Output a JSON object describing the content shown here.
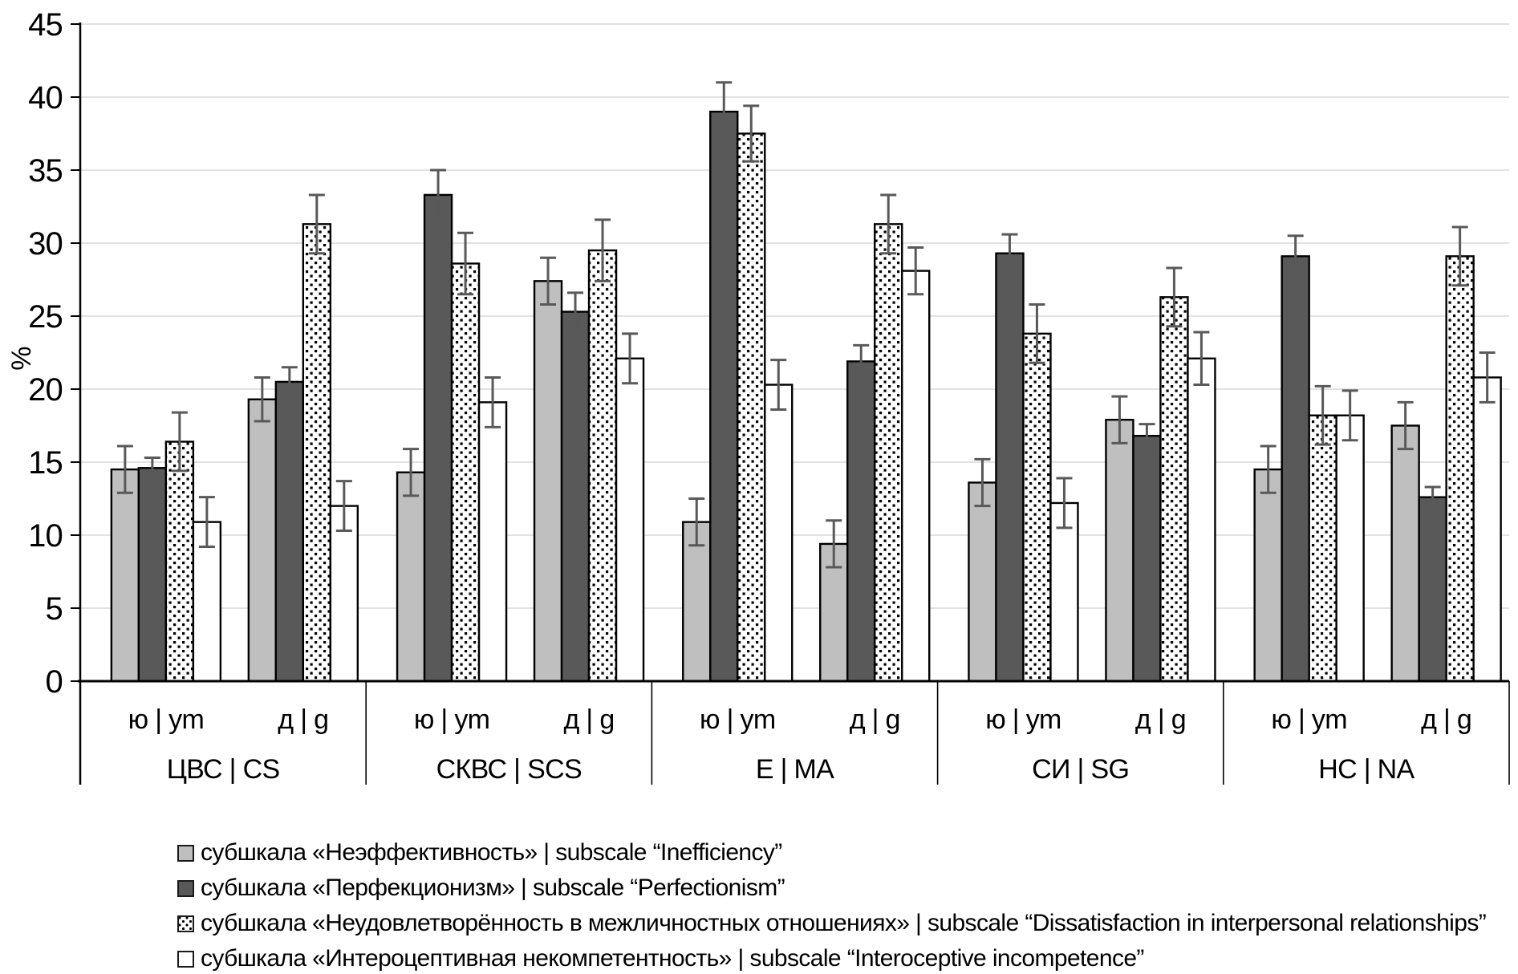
{
  "figure": {
    "background": "#ffffff",
    "gridline_color": "#d9d9d9",
    "bar_outline_color": "#000000",
    "error_bar_color": "#595959",
    "series_fills": [
      "#bfbfbf",
      "#595959",
      "dotted-pattern",
      "#ffffff"
    ]
  },
  "chart_data": {
    "type": "bar",
    "title": "",
    "xlabel": "",
    "ylabel": "%",
    "ylim": [
      0,
      45
    ],
    "yticks": [
      0,
      5,
      10,
      15,
      20,
      25,
      30,
      35,
      40,
      45
    ],
    "grid": true,
    "legend_position": "bottom-left",
    "error_bars": true,
    "series": [
      {
        "name": "субшкала «Неэффективность» | subscale “Inefficiency”",
        "fill": "light-gray",
        "color": "#bfbfbf",
        "pattern": "solid"
      },
      {
        "name": "субшкала «Перфекционизм» | subscale “Perfectionism”",
        "fill": "dark-gray",
        "color": "#595959",
        "pattern": "solid"
      },
      {
        "name": "субшкала «Неудовлетворённость в межличностных отношениях» | subscale “Dissatisfaction in interpersonal relationships”",
        "fill": "white-with-black-dots",
        "color": "#ffffff",
        "pattern": "dotted"
      },
      {
        "name": "субшкала «Интероцептивная некомпетентность» | subscale “Interoceptive incompetence”",
        "fill": "white",
        "color": "#ffffff",
        "pattern": "solid"
      }
    ],
    "groups": [
      {
        "label": "ЦВС | CS",
        "subgroups": [
          {
            "label": "ю | ym",
            "values": [
              14.5,
              14.6,
              16.4,
              10.9
            ],
            "errors": [
              1.6,
              0.7,
              2.0,
              1.7
            ]
          },
          {
            "label": "д | g",
            "values": [
              19.3,
              20.5,
              31.3,
              12.0
            ],
            "errors": [
              1.5,
              1.0,
              2.0,
              1.7
            ]
          }
        ]
      },
      {
        "label": "СКВС | SCS",
        "subgroups": [
          {
            "label": "ю | ym",
            "values": [
              14.3,
              33.3,
              28.6,
              19.1
            ],
            "errors": [
              1.6,
              1.7,
              2.1,
              1.7
            ]
          },
          {
            "label": "д | g",
            "values": [
              27.4,
              25.3,
              29.5,
              22.1
            ],
            "errors": [
              1.6,
              1.3,
              2.1,
              1.7
            ]
          }
        ]
      },
      {
        "label": "Е | МА",
        "subgroups": [
          {
            "label": "ю | ym",
            "values": [
              10.9,
              39.0,
              37.5,
              20.3
            ],
            "errors": [
              1.6,
              2.0,
              1.9,
              1.7
            ]
          },
          {
            "label": "д | g",
            "values": [
              9.4,
              21.9,
              31.3,
              28.1
            ],
            "errors": [
              1.6,
              1.1,
              2.0,
              1.6
            ]
          }
        ]
      },
      {
        "label": "СИ | SG",
        "subgroups": [
          {
            "label": "ю | ym",
            "values": [
              13.6,
              29.3,
              23.8,
              12.2
            ],
            "errors": [
              1.6,
              1.3,
              2.0,
              1.7
            ]
          },
          {
            "label": "д | g",
            "values": [
              17.9,
              16.8,
              26.3,
              22.1
            ],
            "errors": [
              1.6,
              0.8,
              2.0,
              1.8
            ]
          }
        ]
      },
      {
        "label": "НС | NA",
        "subgroups": [
          {
            "label": "ю | ym",
            "values": [
              14.5,
              29.1,
              18.2,
              18.2
            ],
            "errors": [
              1.6,
              1.4,
              2.0,
              1.7
            ]
          },
          {
            "label": "д | g",
            "values": [
              17.5,
              12.6,
              29.1,
              20.8
            ],
            "errors": [
              1.6,
              0.7,
              2.0,
              1.7
            ]
          }
        ]
      }
    ]
  }
}
